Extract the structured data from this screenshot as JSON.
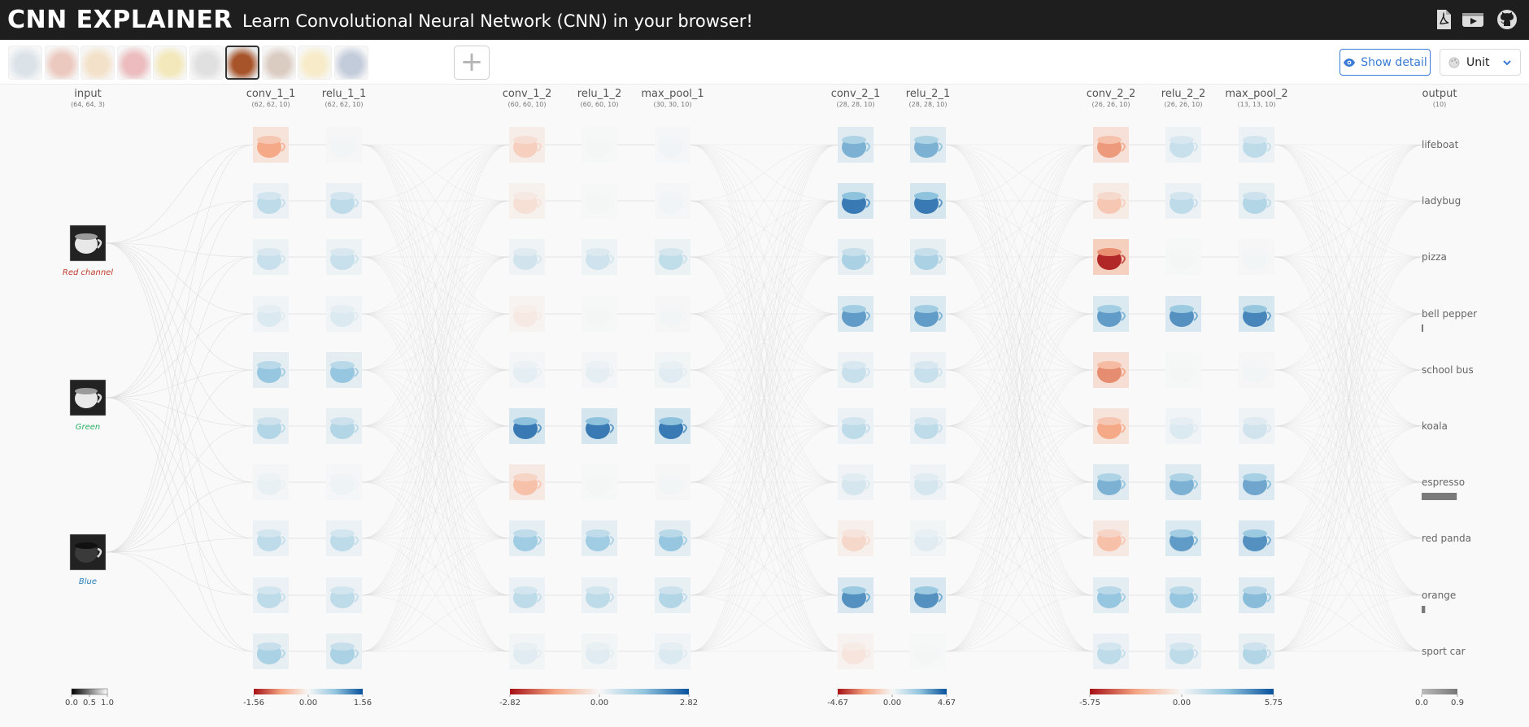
{
  "header": {
    "title": "CNN EXPLAINER",
    "subtitle": "Learn Convolutional Neural Network (CNN) in your browser!",
    "icons": [
      "pdf-icon",
      "video-icon",
      "github-icon"
    ]
  },
  "toolbar": {
    "images": [
      {
        "name": "lifeboat",
        "color": "#8aa4b8"
      },
      {
        "name": "ladybug",
        "color": "#c2502c"
      },
      {
        "name": "pizza",
        "color": "#d9a050"
      },
      {
        "name": "bell pepper",
        "color": "#c1262b"
      },
      {
        "name": "school bus",
        "color": "#d8b421"
      },
      {
        "name": "koala",
        "color": "#9c9c9c"
      },
      {
        "name": "espresso",
        "color": "#a8542a"
      },
      {
        "name": "red panda",
        "color": "#8a5a3a"
      },
      {
        "name": "orange",
        "color": "#e8c050"
      },
      {
        "name": "sport car",
        "color": "#3c5a88"
      }
    ],
    "selected_image": "espresso",
    "add_label": "+",
    "show_detail_label": "Show detail",
    "unit_label": "Unit"
  },
  "network": {
    "layers": [
      {
        "name": "input",
        "dims": "(64, 64, 3)"
      },
      {
        "name": "conv_1_1",
        "dims": "(62, 62, 10)"
      },
      {
        "name": "relu_1_1",
        "dims": "(62, 62, 10)"
      },
      {
        "name": "conv_1_2",
        "dims": "(60, 60, 10)"
      },
      {
        "name": "relu_1_2",
        "dims": "(60, 60, 10)"
      },
      {
        "name": "max_pool_1",
        "dims": "(30, 30, 10)"
      },
      {
        "name": "conv_2_1",
        "dims": "(28, 28, 10)"
      },
      {
        "name": "relu_2_1",
        "dims": "(28, 28, 10)"
      },
      {
        "name": "conv_2_2",
        "dims": "(26, 26, 10)"
      },
      {
        "name": "relu_2_2",
        "dims": "(26, 26, 10)"
      },
      {
        "name": "max_pool_2",
        "dims": "(13, 13, 10)"
      },
      {
        "name": "output",
        "dims": "(10)"
      }
    ],
    "input_channels": [
      {
        "label": "Red channel",
        "color": "#c0392b"
      },
      {
        "label": "Green",
        "color": "#27ae60"
      },
      {
        "label": "Blue",
        "color": "#2980b9"
      }
    ],
    "outputs": [
      {
        "label": "lifeboat",
        "prob": 0.0
      },
      {
        "label": "ladybug",
        "prob": 0.0
      },
      {
        "label": "pizza",
        "prob": 0.0
      },
      {
        "label": "bell pepper",
        "prob": 0.01
      },
      {
        "label": "school bus",
        "prob": 0.0
      },
      {
        "label": "koala",
        "prob": 0.0
      },
      {
        "label": "espresso",
        "prob": 0.9
      },
      {
        "label": "red panda",
        "prob": 0.0
      },
      {
        "label": "orange",
        "prob": 0.09
      },
      {
        "label": "sport car",
        "prob": 0.0
      }
    ],
    "legends": [
      {
        "id": "input",
        "min": "0.0",
        "mid": "0.5",
        "max": "1.0"
      },
      {
        "id": "block1",
        "min": "-1.56",
        "mid": "0.00",
        "max": "1.56"
      },
      {
        "id": "block2",
        "min": "-2.82",
        "mid": "0.00",
        "max": "2.82"
      },
      {
        "id": "block3",
        "min": "-4.67",
        "mid": "0.00",
        "max": "4.67"
      },
      {
        "id": "block4",
        "min": "-5.75",
        "mid": "0.00",
        "max": "5.75"
      },
      {
        "id": "output",
        "min": "0.0",
        "mid": "",
        "max": "0.9"
      }
    ],
    "activations": {
      "conv_1_1": [
        -0.5,
        0.3,
        0.25,
        0.15,
        0.5,
        0.35,
        0.08,
        0.3,
        0.3,
        0.4
      ],
      "relu_1_1": [
        0.03,
        0.3,
        0.25,
        0.15,
        0.5,
        0.35,
        0.05,
        0.3,
        0.3,
        0.4
      ],
      "conv_1_2": [
        -0.25,
        -0.15,
        0.2,
        -0.1,
        0.1,
        0.85,
        -0.35,
        0.45,
        0.3,
        0.12
      ],
      "relu_1_2": [
        0.02,
        0.02,
        0.22,
        0.02,
        0.1,
        0.85,
        0.02,
        0.45,
        0.3,
        0.12
      ],
      "max_pool_1": [
        0.04,
        0.04,
        0.28,
        0.03,
        0.12,
        0.85,
        0.03,
        0.5,
        0.35,
        0.15
      ],
      "conv_2_1": [
        0.6,
        0.85,
        0.4,
        0.7,
        0.25,
        0.3,
        0.18,
        -0.2,
        0.75,
        -0.12
      ],
      "relu_2_1": [
        0.6,
        0.85,
        0.4,
        0.7,
        0.25,
        0.3,
        0.18,
        0.12,
        0.75,
        0.02
      ],
      "conv_2_2": [
        -0.55,
        -0.3,
        -0.95,
        0.7,
        -0.6,
        -0.5,
        0.6,
        -0.35,
        0.5,
        0.3
      ],
      "relu_2_2": [
        0.25,
        0.3,
        0.02,
        0.75,
        0.02,
        0.15,
        0.6,
        0.7,
        0.5,
        0.3
      ],
      "max_pool_2": [
        0.3,
        0.35,
        0.03,
        0.8,
        0.03,
        0.2,
        0.65,
        0.75,
        0.55,
        0.35
      ]
    }
  }
}
